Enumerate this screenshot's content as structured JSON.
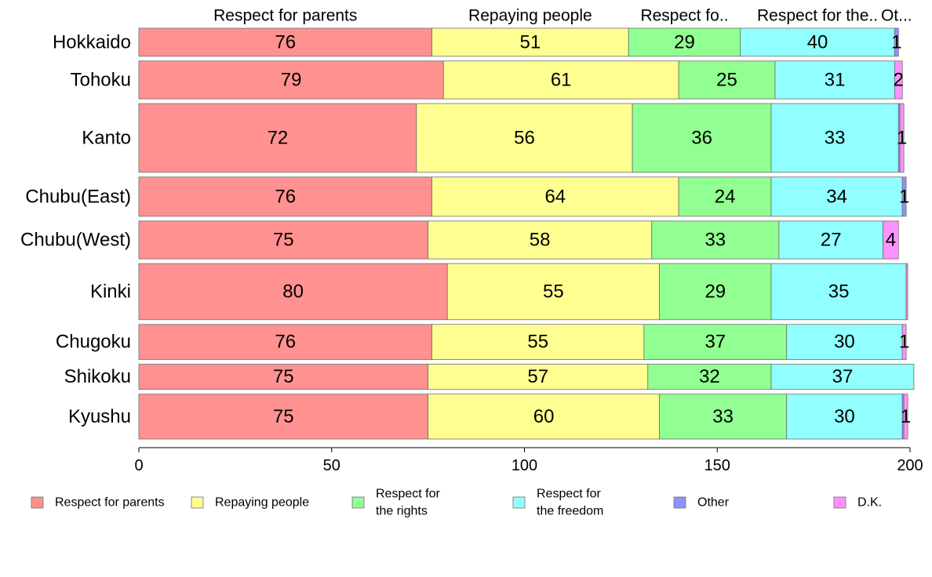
{
  "chart_data": {
    "type": "bar",
    "orientation": "horizontal",
    "stacked": true,
    "variable_width": true,
    "categories": [
      "Hokkaido",
      "Tohoku",
      "Kanto",
      "Chubu(East)",
      "Chubu(West)",
      "Kinki",
      "Chugoku",
      "Shikoku",
      "Kyushu"
    ],
    "row_weights": [
      1.0,
      1.35,
      2.45,
      1.4,
      1.35,
      2.0,
      1.25,
      0.9,
      1.6
    ],
    "series": [
      {
        "name": "Respect for parents",
        "color": "#ff9191",
        "values": [
          76,
          79,
          72,
          76,
          75,
          80,
          76,
          75,
          75
        ]
      },
      {
        "name": "Repaying people",
        "color": "#ffff91",
        "values": [
          51,
          61,
          56,
          64,
          58,
          55,
          55,
          57,
          60
        ]
      },
      {
        "name": "Respect for the rights",
        "color": "#91ff91",
        "values": [
          29,
          25,
          36,
          24,
          33,
          29,
          37,
          32,
          33
        ]
      },
      {
        "name": "Respect for the freedom",
        "color": "#91ffff",
        "values": [
          40,
          31,
          33,
          34,
          27,
          35,
          30,
          37,
          30
        ]
      },
      {
        "name": "Other",
        "color": "#9191ff",
        "values": [
          1,
          0,
          0.4,
          1,
          0,
          0,
          0,
          0,
          0.4
        ]
      },
      {
        "name": "D.K.",
        "color": "#ff91ff",
        "values": [
          0,
          2,
          1,
          0,
          4,
          0.4,
          1,
          0,
          1
        ]
      }
    ],
    "segment_labels": [
      [
        "76",
        "51",
        "29",
        "40",
        "1",
        ""
      ],
      [
        "79",
        "61",
        "25",
        "31",
        "",
        "2"
      ],
      [
        "72",
        "56",
        "36",
        "33",
        "",
        "1"
      ],
      [
        "76",
        "64",
        "24",
        "34",
        "1",
        ""
      ],
      [
        "75",
        "58",
        "33",
        "27",
        "",
        "4"
      ],
      [
        "80",
        "55",
        "29",
        "35",
        "",
        ""
      ],
      [
        "76",
        "55",
        "37",
        "30",
        "",
        "1"
      ],
      [
        "75",
        "57",
        "32",
        "37",
        "",
        ""
      ],
      [
        "75",
        "60",
        "33",
        "30",
        "",
        "1"
      ]
    ],
    "top_labels": [
      "Respect for parents",
      "Repaying people",
      "Respect fo..",
      "Respect for the..",
      "Ot..."
    ],
    "legend_labels": [
      [
        "Respect for parents"
      ],
      [
        "Repaying people"
      ],
      [
        "Respect for",
        "the rights"
      ],
      [
        "Respect for",
        "the freedom"
      ],
      [
        "Other"
      ],
      [
        "D.K."
      ]
    ],
    "x_ticks": [
      0,
      50,
      100,
      150,
      200
    ],
    "xlim": [
      0,
      200
    ],
    "legend_position": "bottom"
  }
}
